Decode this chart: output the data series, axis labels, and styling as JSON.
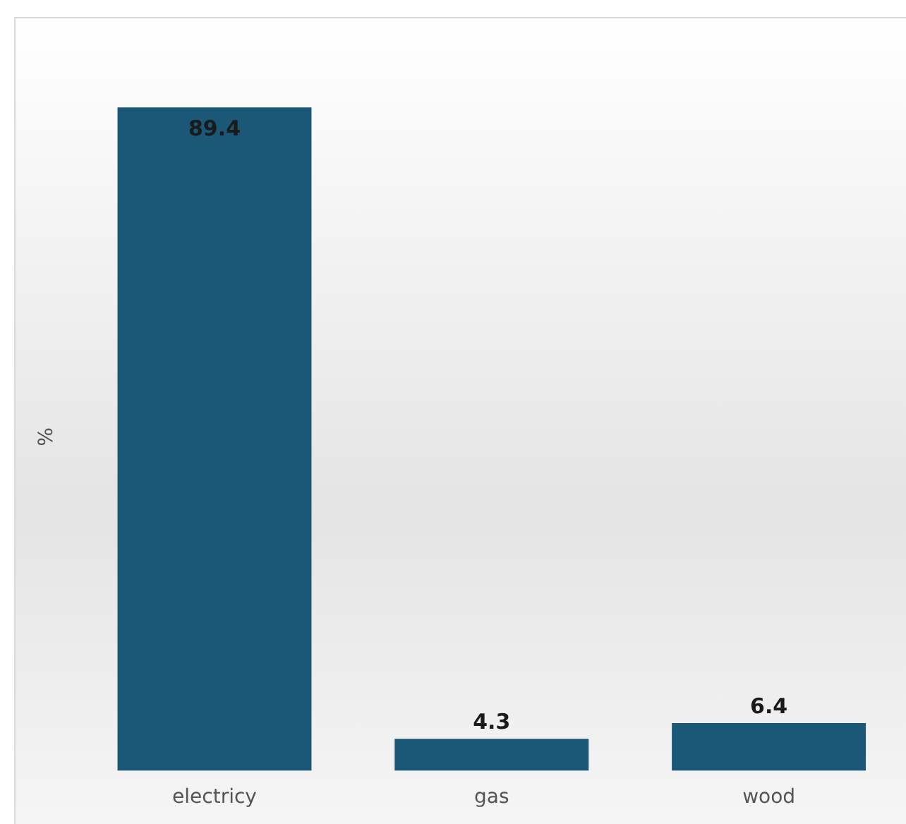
{
  "chart_data": {
    "type": "bar",
    "ylabel": "%",
    "categories": [
      "electricy",
      "gas",
      "wood"
    ],
    "values": [
      89.4,
      4.3,
      6.4
    ],
    "color": "#1b5877",
    "data_labels": true,
    "grid": false,
    "legend": false
  }
}
